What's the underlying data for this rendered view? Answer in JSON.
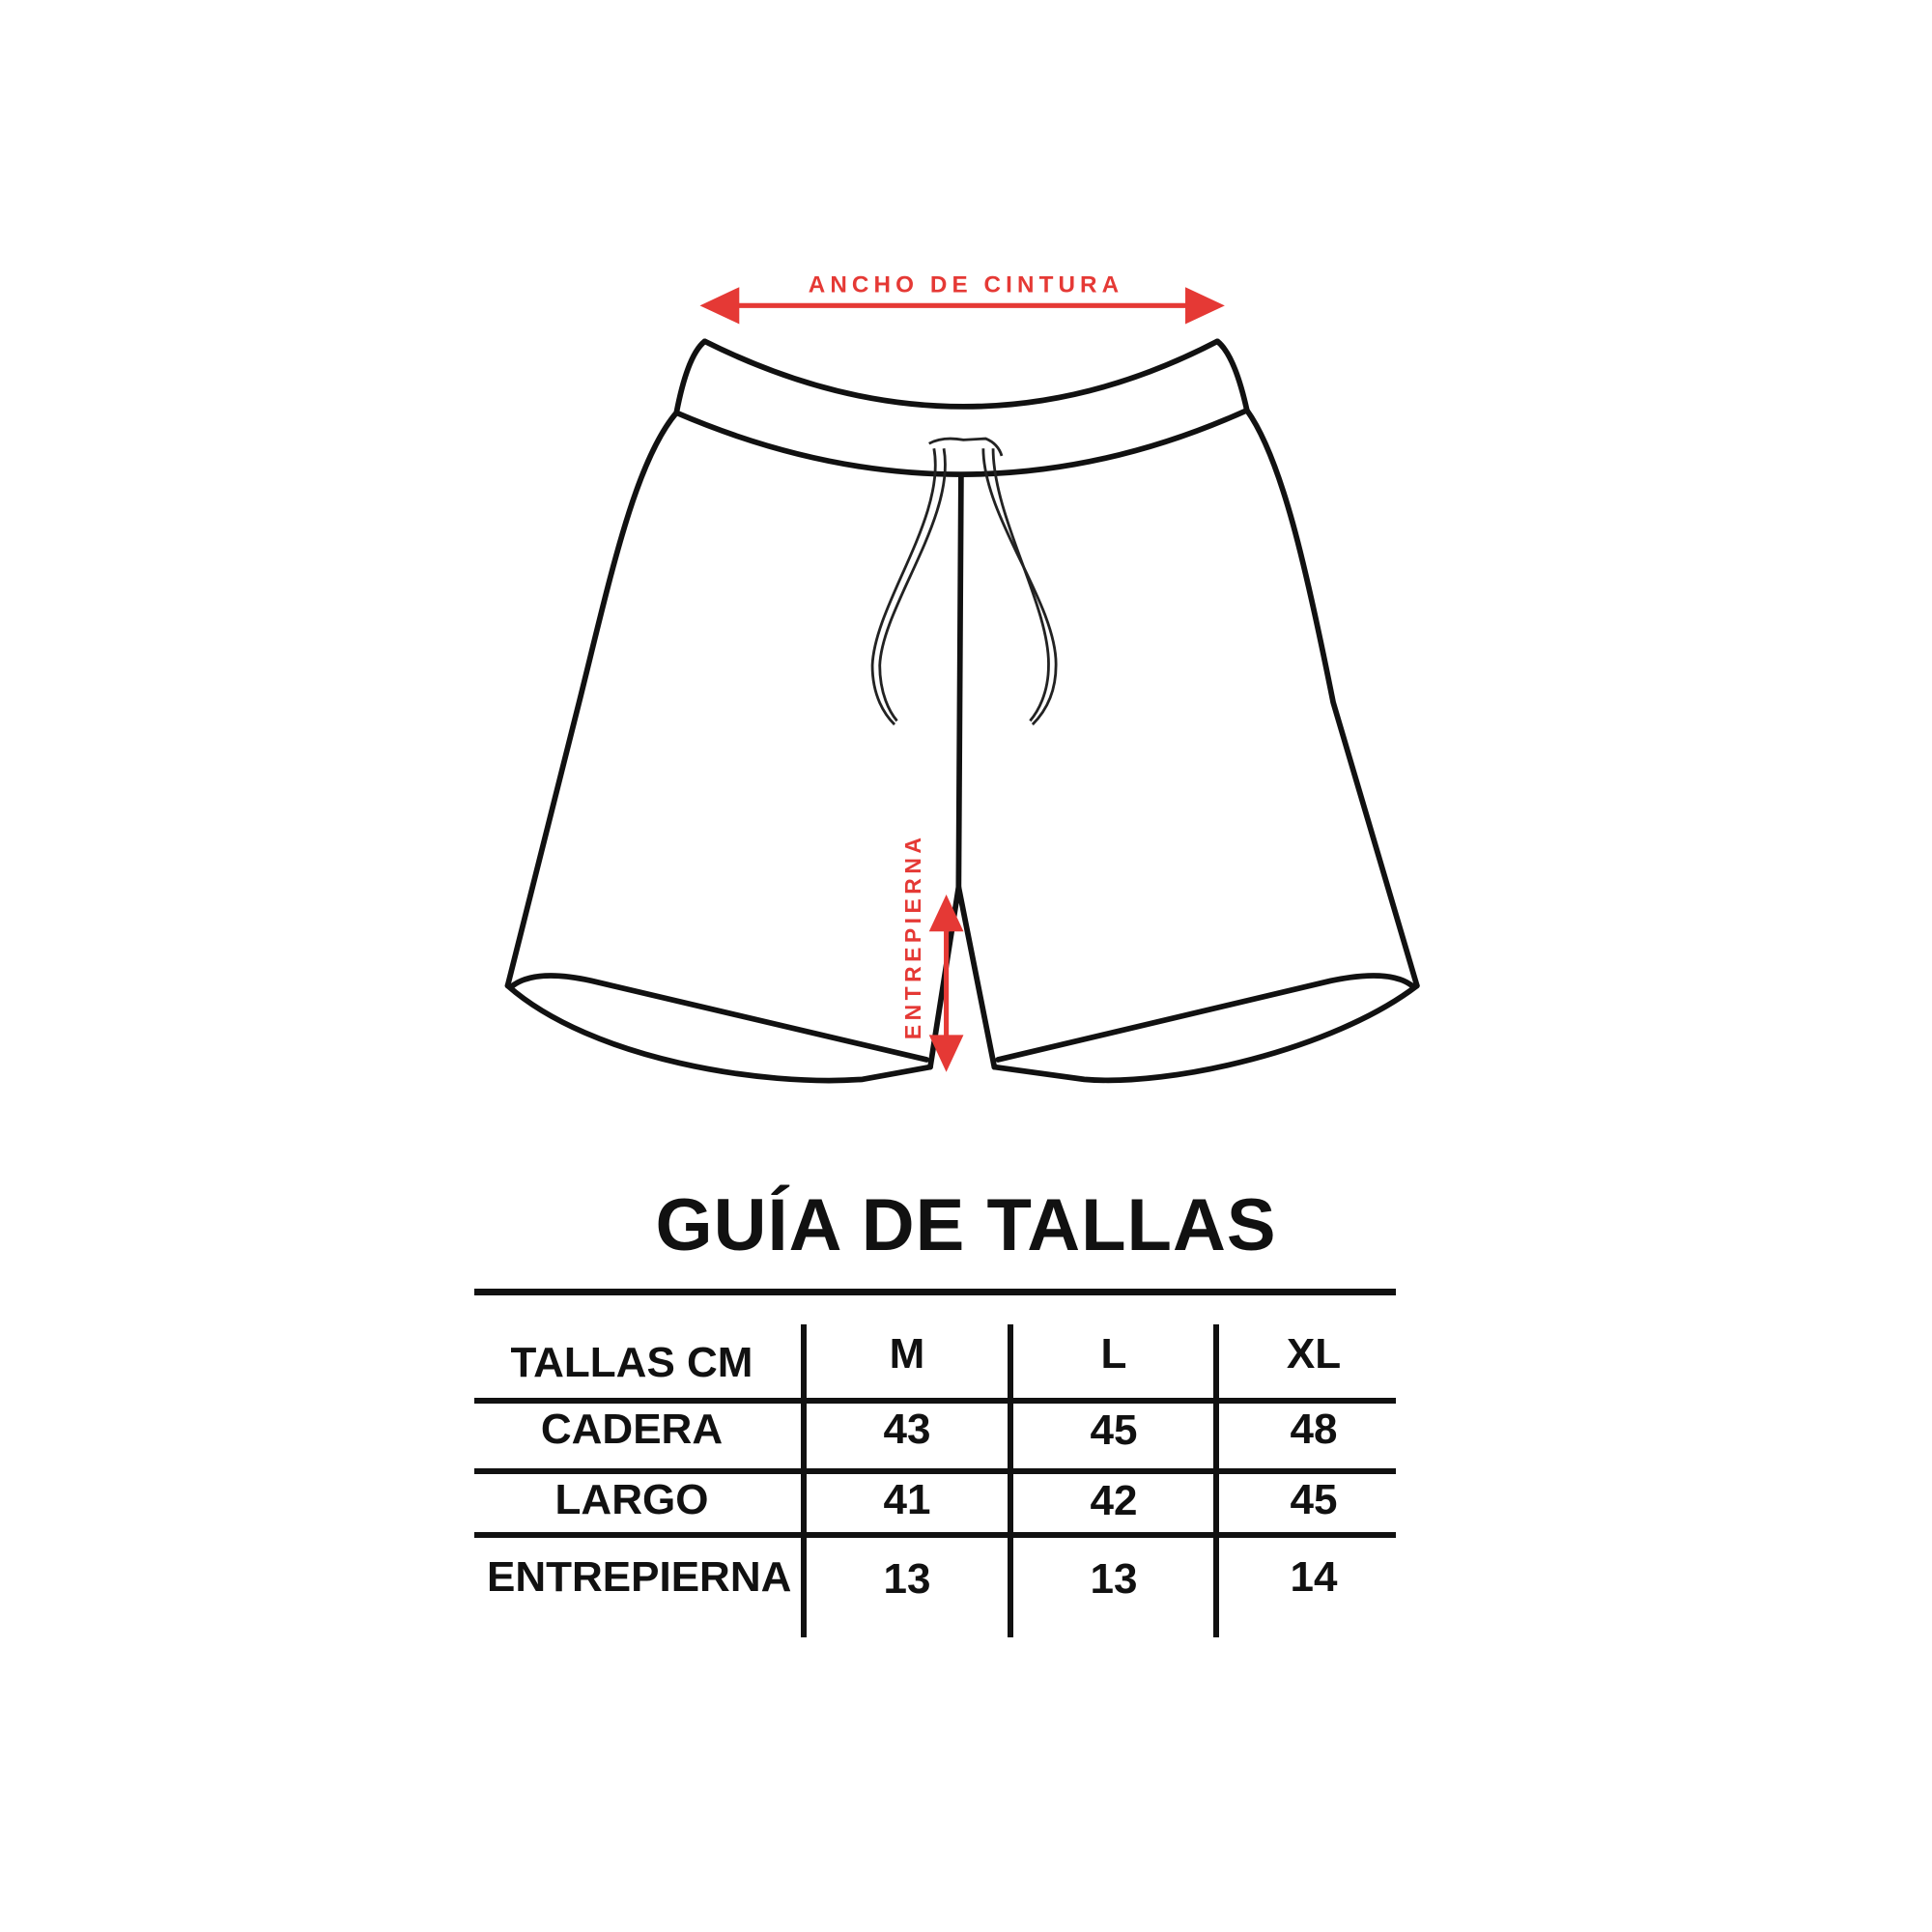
{
  "diagram": {
    "waist_label": "ANCHO DE CINTURA",
    "inseam_label": "ENTREPIERNA",
    "accent_color": "#e53935"
  },
  "title": "GUÍA DE TALLAS",
  "table": {
    "header": [
      "TALLAS CM",
      "M",
      "L",
      "XL"
    ],
    "rows": [
      {
        "label": "CADERA",
        "values": [
          "43",
          "45",
          "48"
        ]
      },
      {
        "label": "LARGO",
        "values": [
          "41",
          "42",
          "45"
        ]
      },
      {
        "label": "ENTREPIERNA",
        "values": [
          "13",
          "13",
          "14"
        ]
      }
    ]
  }
}
